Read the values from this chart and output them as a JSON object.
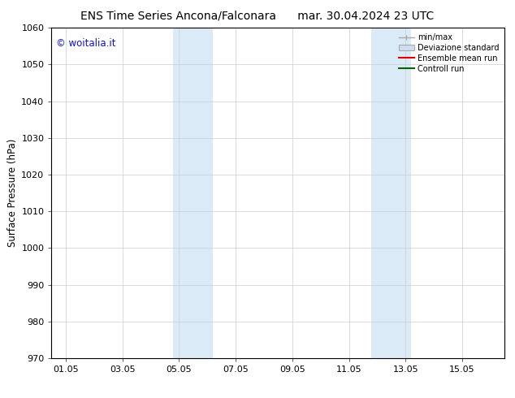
{
  "title_left": "ENS Time Series Ancona/Falconara",
  "title_right": "mar. 30.04.2024 23 UTC",
  "ylabel": "Surface Pressure (hPa)",
  "ylim": [
    970,
    1060
  ],
  "yticks": [
    970,
    980,
    990,
    1000,
    1010,
    1020,
    1030,
    1040,
    1050,
    1060
  ],
  "xtick_labels": [
    "01.05",
    "03.05",
    "05.05",
    "07.05",
    "09.05",
    "11.05",
    "13.05",
    "15.05"
  ],
  "xtick_positions": [
    0,
    2,
    4,
    6,
    8,
    10,
    12,
    14
  ],
  "x_min": -0.5,
  "x_max": 15.5,
  "shaded_bands": [
    {
      "x_start": 3.8,
      "x_end": 5.2
    },
    {
      "x_start": 10.8,
      "x_end": 12.2
    }
  ],
  "shaded_color": "#daeaf7",
  "watermark_text": "© woitalia.it",
  "watermark_color": "#1111cc",
  "legend_items": [
    {
      "label": "min/max",
      "color": "#aaaaaa",
      "lw": 1.0,
      "type": "errorbar"
    },
    {
      "label": "Deviazione standard",
      "color": "#cdddf0",
      "lw": 5,
      "type": "band"
    },
    {
      "label": "Ensemble mean run",
      "color": "#dd0000",
      "lw": 1.5,
      "type": "line"
    },
    {
      "label": "Controll run",
      "color": "#006600",
      "lw": 1.5,
      "type": "line"
    }
  ],
  "bg_color": "#ffffff",
  "grid_color": "#cccccc",
  "title_fontsize": 10,
  "tick_fontsize": 8,
  "ylabel_fontsize": 8.5,
  "watermark_fontsize": 8.5
}
